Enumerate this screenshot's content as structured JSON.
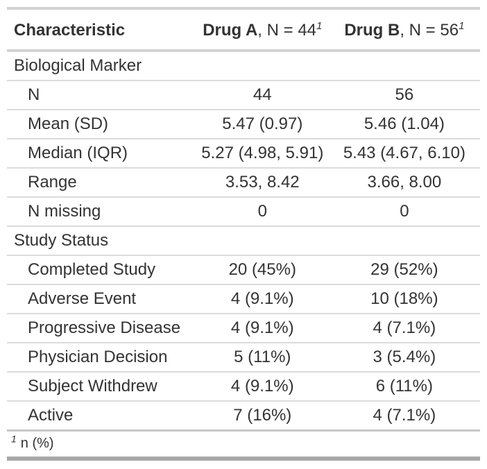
{
  "colors": {
    "text": "#333333",
    "border_light": "#dbdbdb",
    "border_medium": "#d3d3d3",
    "border_dark": "#a8a8a8"
  },
  "table": {
    "header": {
      "characteristic": "Characteristic",
      "col_a": {
        "name": "Drug A",
        "rest": ", N = 44",
        "mark": "1"
      },
      "col_b": {
        "name": "Drug B",
        "rest": ", N = 56",
        "mark": "1"
      }
    },
    "rows": [
      {
        "type": "group",
        "label": "Biological Marker"
      },
      {
        "type": "data",
        "label": "N",
        "drug_a": "44",
        "drug_b": "56"
      },
      {
        "type": "data",
        "label": "Mean (SD)",
        "drug_a": "5.47 (0.97)",
        "drug_b": "5.46 (1.04)"
      },
      {
        "type": "data",
        "label": "Median (IQR)",
        "drug_a": "5.27 (4.98, 5.91)",
        "drug_b": "5.43 (4.67, 6.10)"
      },
      {
        "type": "data",
        "label": "Range",
        "drug_a": "3.53, 8.42",
        "drug_b": "3.66, 8.00"
      },
      {
        "type": "data",
        "label": "N missing",
        "drug_a": "0",
        "drug_b": "0"
      },
      {
        "type": "group",
        "label": "Study Status"
      },
      {
        "type": "data",
        "label": "Completed Study",
        "drug_a": "20 (45%)",
        "drug_b": "29 (52%)"
      },
      {
        "type": "data",
        "label": "Adverse Event",
        "drug_a": "4 (9.1%)",
        "drug_b": "10 (18%)"
      },
      {
        "type": "data",
        "label": "Progressive Disease",
        "drug_a": "4 (9.1%)",
        "drug_b": "4 (7.1%)"
      },
      {
        "type": "data",
        "label": "Physician Decision",
        "drug_a": "5 (11%)",
        "drug_b": "3 (5.4%)"
      },
      {
        "type": "data",
        "label": "Subject Withdrew",
        "drug_a": "4 (9.1%)",
        "drug_b": "6 (11%)"
      },
      {
        "type": "data",
        "label": "Active",
        "drug_a": "7 (16%)",
        "drug_b": "4 (7.1%)"
      }
    ],
    "footnote": {
      "mark": "1",
      "text": "n (%)"
    }
  }
}
